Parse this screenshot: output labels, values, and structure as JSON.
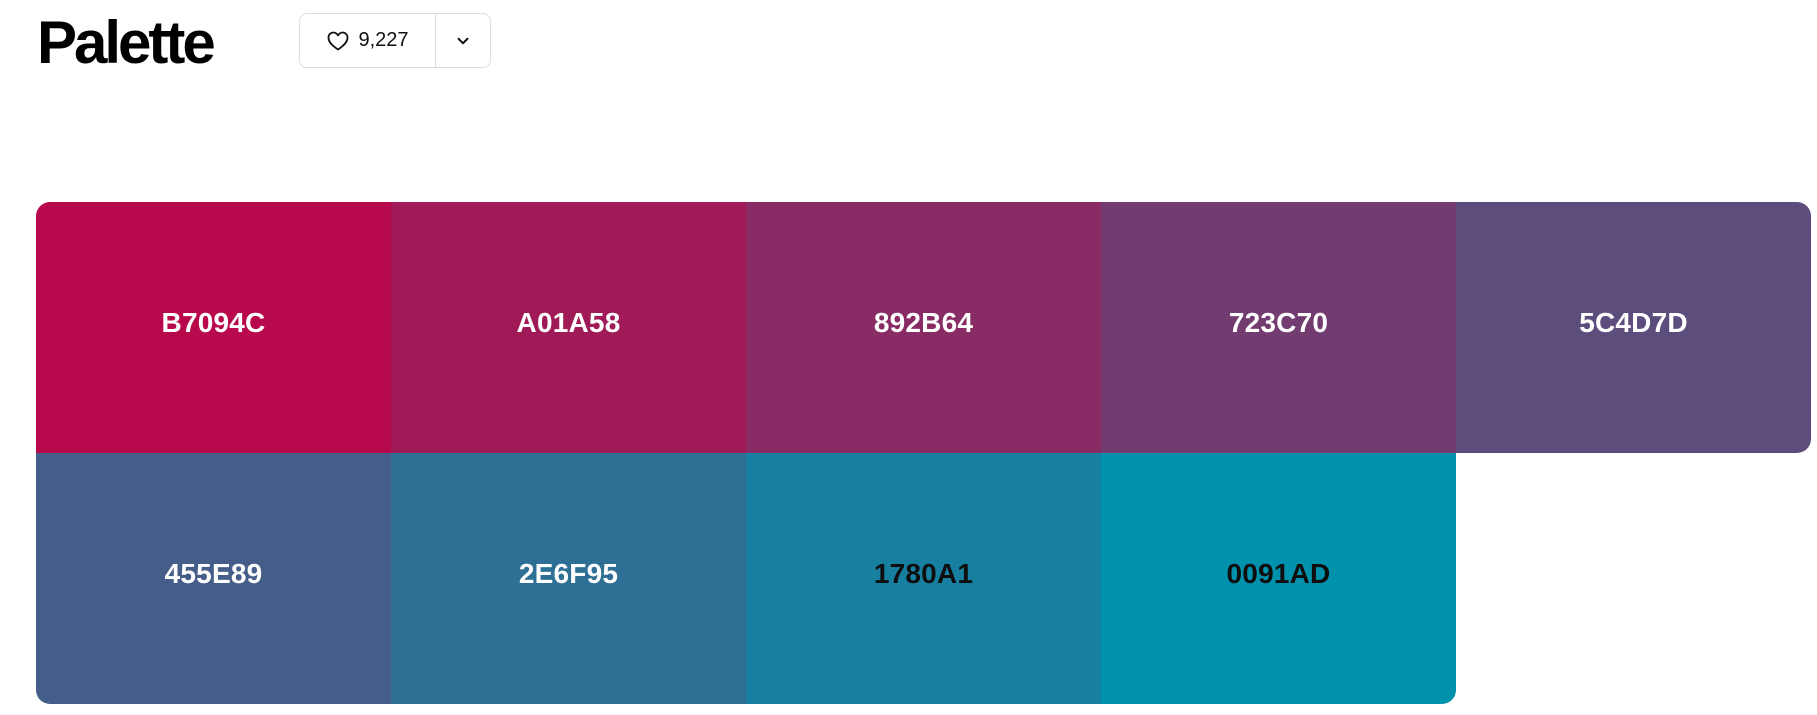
{
  "header": {
    "title": "Palette",
    "like_count": "9,227",
    "like_icon": "heart-icon",
    "more_icon": "chevron-down-icon"
  },
  "palette": {
    "colors": [
      {
        "hex": "B7094C",
        "color": "#B7094C",
        "label_tone": "light"
      },
      {
        "hex": "A01A58",
        "color": "#A01A58",
        "label_tone": "light"
      },
      {
        "hex": "892B64",
        "color": "#892B64",
        "label_tone": "light"
      },
      {
        "hex": "723C70",
        "color": "#723C70",
        "label_tone": "light"
      },
      {
        "hex": "5C4D7D",
        "color": "#5C4D7D",
        "label_tone": "light"
      },
      {
        "hex": "455E89",
        "color": "#455E89",
        "label_tone": "light"
      },
      {
        "hex": "2E6F95",
        "color": "#2E6F95",
        "label_tone": "light"
      },
      {
        "hex": "1780A1",
        "color": "#1780A1",
        "label_tone": "dark"
      },
      {
        "hex": "0091AD",
        "color": "#0091AD",
        "label_tone": "dark"
      }
    ]
  }
}
